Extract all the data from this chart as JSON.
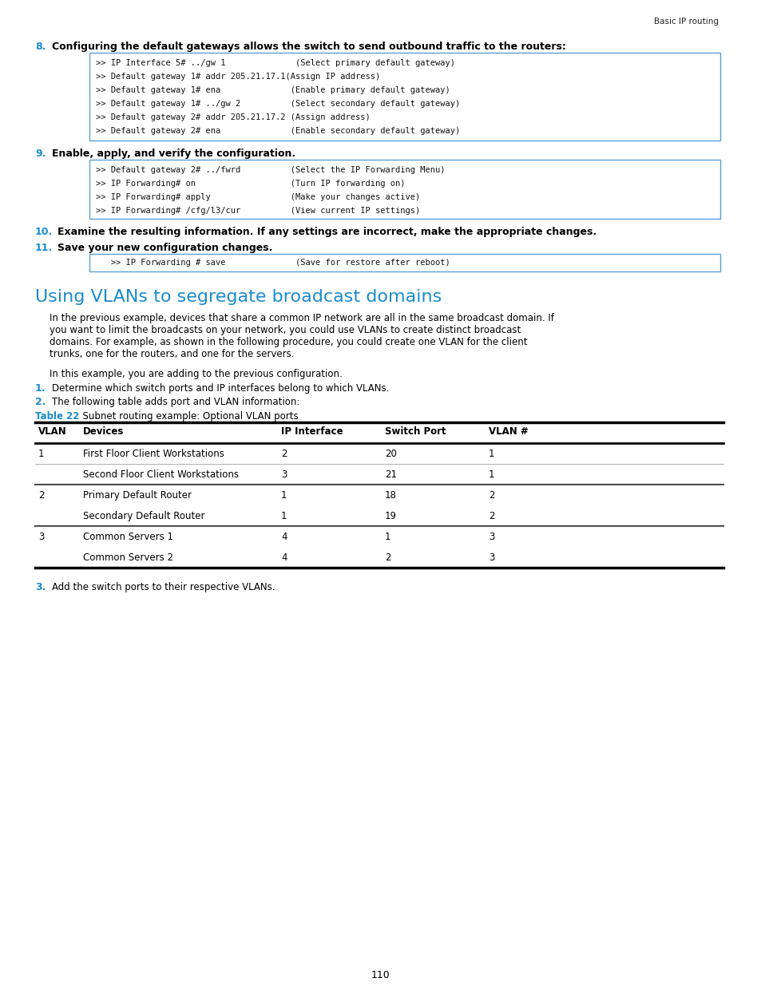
{
  "page_bg": "#ffffff",
  "header_text": "Basic IP routing",
  "step8_num": "8.",
  "step8_text": "Configuring the default gateways allows the switch to send outbound traffic to the routers:",
  "step8_code": [
    ">> IP Interface 5# ../gw 1              (Select primary default gateway)",
    ">> Default gateway 1# addr 205.21.17.1(Assign IP address)",
    ">> Default gateway 1# ena              (Enable primary default gateway)",
    ">> Default gateway 1# ../gw 2          (Select secondary default gateway)",
    ">> Default gateway 2# addr 205.21.17.2 (Assign address)",
    ">> Default gateway 2# ena              (Enable secondary default gateway)"
  ],
  "step9_num": "9.",
  "step9_text": "Enable, apply, and verify the configuration.",
  "step9_code": [
    ">> Default gateway 2# ../fwrd          (Select the IP Forwarding Menu)",
    ">> IP Forwarding# on                   (Turn IP forwarding on)",
    ">> IP Forwarding# apply                (Make your changes active)",
    ">> IP Forwarding# /cfg/l3/cur          (View current IP settings)"
  ],
  "step10_num": "10.",
  "step10_text": "Examine the resulting information. If any settings are incorrect, make the appropriate changes.",
  "step11_num": "11.",
  "step11_text": "Save your new configuration changes.",
  "step11_code": [
    "   >> IP Forwarding # save              (Save for restore after reboot)"
  ],
  "section_title": "Using VLANs to segregate broadcast domains",
  "section_title_color": "#1a8ccc",
  "para1_lines": [
    "In the previous example, devices that share a common IP network are all in the same broadcast domain. If",
    "you want to limit the broadcasts on your network, you could use VLANs to create distinct broadcast",
    "domains. For example, as shown in the following procedure, you could create one VLAN for the client",
    "trunks, one for the routers, and one for the servers."
  ],
  "para2": "In this example, you are adding to the previous configuration.",
  "list1_num": "1.",
  "list1_text": "Determine which switch ports and IP interfaces belong to which VLANs.",
  "list2_num": "2.",
  "list2_text": "The following table adds port and VLAN information:",
  "table_caption_bold": "Table 22",
  "table_caption_rest": "  Subnet routing example: Optional VLAN ports",
  "table_caption_color": "#1a8ccc",
  "table_headers": [
    "VLAN",
    "Devices",
    "IP Interface",
    "Switch Port",
    "VLAN #"
  ],
  "table_rows": [
    [
      "1",
      "First Floor Client Workstations",
      "2",
      "20",
      "1"
    ],
    [
      "",
      "Second Floor Client Workstations",
      "3",
      "21",
      "1"
    ],
    [
      "2",
      "Primary Default Router",
      "1",
      "18",
      "2"
    ],
    [
      "",
      "Secondary Default Router",
      "1",
      "19",
      "2"
    ],
    [
      "3",
      "Common Servers 1",
      "4",
      "1",
      "3"
    ],
    [
      "",
      "Common Servers 2",
      "4",
      "2",
      "3"
    ]
  ],
  "list3_num": "3.",
  "list3_text": "Add the switch ports to their respective VLANs.",
  "page_num": "110",
  "blue_color": "#1a8ccc",
  "code_border": "#5a9fd4"
}
